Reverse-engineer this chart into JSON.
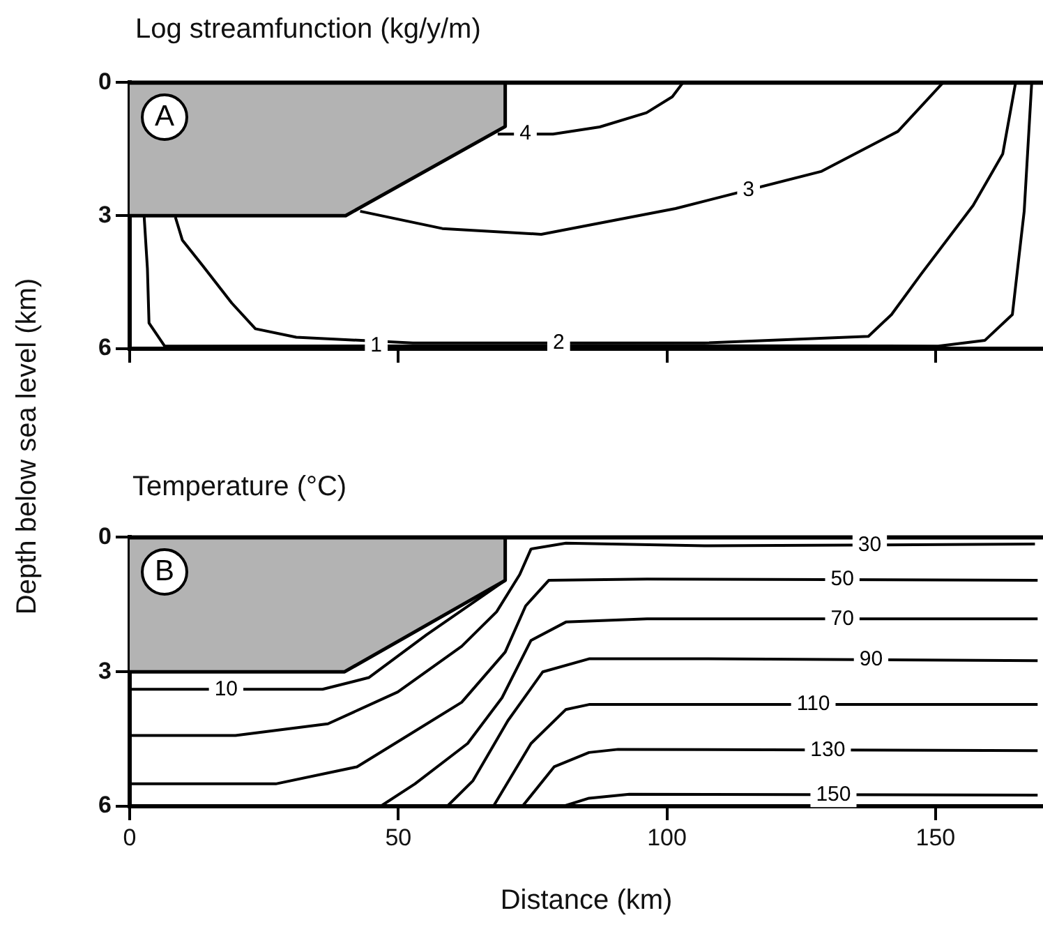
{
  "chart_data": [
    {
      "type": "line",
      "title": "Log streamfunction (kg/y/m)",
      "ylabel": "Depth below sea level (km)",
      "annotations": [
        "A"
      ],
      "xlim": [
        0,
        170
      ],
      "xticks": [
        {
          "value": 0,
          "label": null
        },
        {
          "value": 50,
          "label": null
        },
        {
          "value": 100,
          "label": null
        },
        {
          "value": 150,
          "label": null
        }
      ],
      "ylim": [
        6,
        0
      ],
      "yticks": [
        0,
        3,
        6
      ],
      "tick_labels": "y",
      "grid": false,
      "legend": false,
      "marker": "none",
      "line_style": "solid",
      "series": [
        {
          "type": "area",
          "color": "#b3b3b3",
          "x": [
            0,
            40.2,
            69.9,
            69.9
          ],
          "values": [
            3,
            3,
            0.99,
            0
          ]
        },
        {
          "name": "4",
          "color": "#000000",
          "x": [
            68.5,
            78.8,
            87.5,
            96.2,
            101,
            103
          ],
          "values": [
            1.16,
            1.16,
            1.0,
            0.68,
            0.32,
            0
          ]
        },
        {
          "name": "3",
          "color": "#000000",
          "x": [
            42.9,
            58.2,
            76.6,
            101.6,
            128.8,
            143,
            151.4
          ],
          "values": [
            2.9,
            3.29,
            3.42,
            2.84,
            2.0,
            1.1,
            0
          ]
        },
        {
          "name": "2",
          "color": "#000000",
          "x": [
            8.5,
            9.8,
            13.6,
            19,
            23.4,
            31,
            52.7,
            107,
            137.5,
            141.8,
            147.3,
            157,
            162.5,
            164.9
          ],
          "values": [
            3.03,
            3.55,
            4.13,
            4.97,
            5.55,
            5.74,
            5.87,
            5.87,
            5.72,
            5.23,
            4.32,
            2.77,
            1.61,
            0
          ]
        },
        {
          "name": "1",
          "color": "#000000",
          "x": [
            2.7,
            3.3,
            3.6,
            6.5,
            85.3,
            150.5,
            159.2,
            164.3,
            165.4,
            166.5,
            167.9
          ],
          "values": [
            3.03,
            4.19,
            5.42,
            5.94,
            5.93,
            5.94,
            5.81,
            5.23,
            4.06,
            2.9,
            0
          ]
        }
      ]
    },
    {
      "type": "line",
      "title": "Temperature (°C)",
      "xlabel": "Distance (km)",
      "annotations": [
        "B"
      ],
      "xlim": [
        0,
        170
      ],
      "xticks": [
        0,
        50,
        100,
        150
      ],
      "ylim": [
        6,
        0
      ],
      "yticks": [
        0,
        3,
        6
      ],
      "grid": false,
      "legend": false,
      "marker": "none",
      "line_style": "solid",
      "series": [
        {
          "type": "area",
          "color": "#b3b3b3",
          "x": [
            0,
            40,
            69.9,
            69.9
          ],
          "values": [
            3,
            3,
            0.96,
            0
          ]
        },
        {
          "name": "10",
          "color": "#000000",
          "x": [
            0,
            35.9,
            44.5,
            55.3,
            69.9
          ],
          "values": [
            3.39,
            3.39,
            3.13,
            2.17,
            0.96
          ]
        },
        {
          "name": "30",
          "color": "#000000",
          "x": [
            0,
            19.7,
            36.9,
            49.9,
            61.8,
            68.3,
            72.6,
            74.7,
            81.2,
            107,
            168.5
          ],
          "values": [
            4.42,
            4.42,
            4.16,
            3.45,
            2.43,
            1.66,
            0.83,
            0.26,
            0.13,
            0.19,
            0.15
          ]
        },
        {
          "name": "50",
          "color": "#000000",
          "x": [
            0,
            27.2,
            42.3,
            51,
            61.8,
            69.9,
            73.7,
            78,
            96.3,
            169
          ],
          "values": [
            5.5,
            5.5,
            5.12,
            4.48,
            3.68,
            2.56,
            1.53,
            0.96,
            0.93,
            0.96
          ]
        },
        {
          "name": "70",
          "color": "#000000",
          "x": [
            46.7,
            53.1,
            62.9,
            69.3,
            74.7,
            81.2,
            96.3,
            169
          ],
          "values": [
            6.0,
            5.5,
            4.6,
            3.58,
            2.3,
            1.89,
            1.82,
            1.82
          ]
        },
        {
          "name": "90",
          "color": "#000000",
          "x": [
            59.1,
            63.9,
            70.4,
            76.9,
            85.5,
            107,
            169
          ],
          "values": [
            6.0,
            5.43,
            4.09,
            3.0,
            2.71,
            2.71,
            2.75
          ]
        },
        {
          "name": "110",
          "color": "#000000",
          "x": [
            67.7,
            74.7,
            81.2,
            85.5,
            169
          ],
          "values": [
            6.0,
            4.6,
            3.84,
            3.73,
            3.73
          ]
        },
        {
          "name": "130",
          "color": "#000000",
          "x": [
            73.1,
            79,
            85.5,
            90.9,
            169
          ],
          "values": [
            6.0,
            5.12,
            4.8,
            4.73,
            4.76
          ]
        },
        {
          "name": "150",
          "color": "#000000",
          "x": [
            80.7,
            85.5,
            93,
            169
          ],
          "values": [
            6.0,
            5.82,
            5.73,
            5.75
          ]
        }
      ]
    }
  ]
}
